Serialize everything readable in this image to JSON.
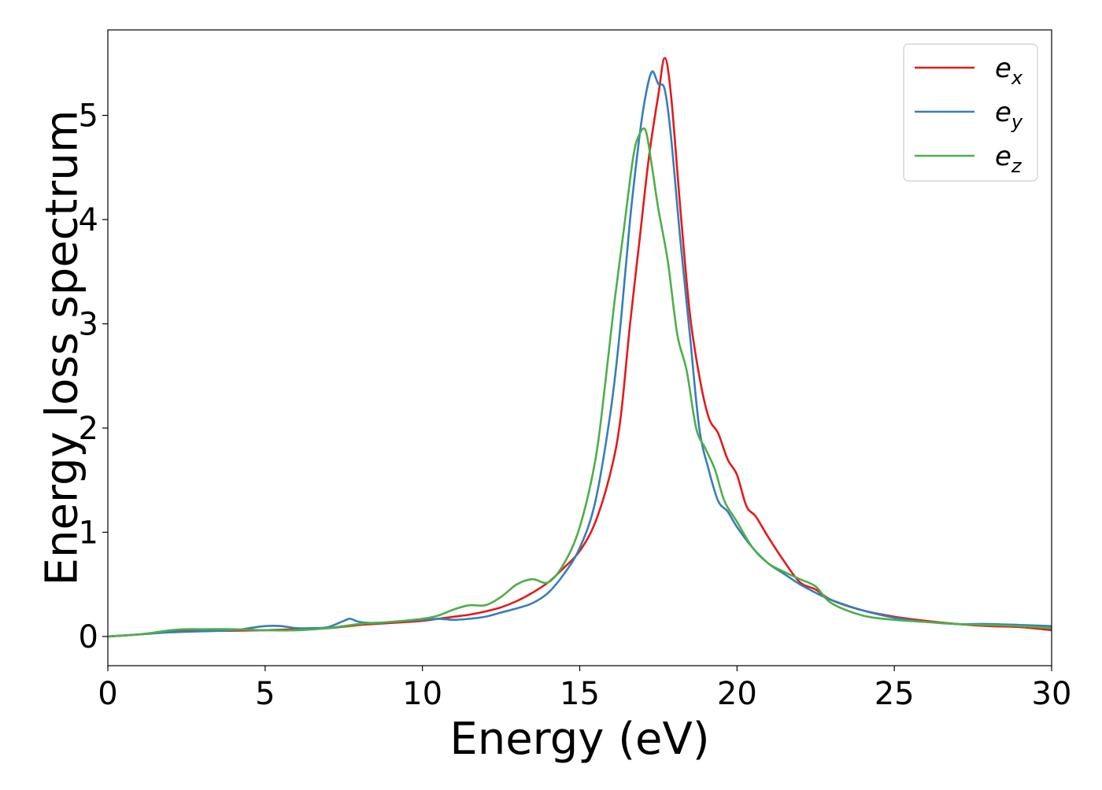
{
  "chart_data": {
    "type": "line",
    "title": "",
    "xlabel": "Energy (eV)",
    "ylabel": "Energy loss spectrum",
    "xlim": [
      0,
      30
    ],
    "ylim": [
      -0.28,
      5.82
    ],
    "xticks": [
      0,
      5,
      10,
      15,
      20,
      25,
      30
    ],
    "yticks": [
      0,
      1,
      2,
      3,
      4,
      5
    ],
    "grid": false,
    "legend_position": "top-right",
    "series": [
      {
        "name": "e_x",
        "color": "#e41a1c",
        "x": [
          0,
          1,
          2,
          3,
          4,
          5,
          6,
          7,
          8,
          9,
          10,
          10.5,
          11,
          11.5,
          12,
          12.5,
          13,
          13.5,
          14,
          14.5,
          15,
          15.5,
          16,
          16.3,
          16.6,
          16.9,
          17.2,
          17.5,
          17.7,
          17.9,
          18.2,
          18.5,
          18.8,
          19.1,
          19.4,
          19.7,
          20,
          20.3,
          20.6,
          21,
          21.5,
          22,
          22.5,
          23,
          24,
          25,
          26,
          27,
          28,
          29,
          30
        ],
        "values": [
          0,
          0.02,
          0.045,
          0.055,
          0.055,
          0.06,
          0.07,
          0.08,
          0.11,
          0.13,
          0.15,
          0.17,
          0.19,
          0.21,
          0.24,
          0.28,
          0.34,
          0.42,
          0.52,
          0.66,
          0.82,
          1.1,
          1.6,
          2.1,
          3.0,
          3.8,
          4.6,
          5.2,
          5.55,
          5.2,
          4.1,
          3.1,
          2.5,
          2.1,
          1.95,
          1.7,
          1.55,
          1.25,
          1.15,
          0.95,
          0.72,
          0.52,
          0.45,
          0.35,
          0.25,
          0.19,
          0.15,
          0.12,
          0.1,
          0.09,
          0.06
        ]
      },
      {
        "name": "e_y",
        "color": "#377eb8",
        "x": [
          0,
          1,
          2,
          3,
          4,
          4.5,
          5,
          5.5,
          6,
          6.5,
          7,
          7.5,
          7.7,
          8,
          8.5,
          9,
          9.5,
          10,
          10.5,
          11,
          11.5,
          12,
          12.5,
          13,
          13.5,
          14,
          14.5,
          15,
          15.5,
          16,
          16.3,
          16.6,
          16.9,
          17.1,
          17.3,
          17.5,
          17.7,
          17.9,
          18.2,
          18.5,
          18.8,
          19.1,
          19.4,
          19.7,
          20,
          20.5,
          21,
          21.5,
          22,
          22.5,
          23,
          24,
          25,
          26,
          27,
          28,
          29,
          30
        ],
        "values": [
          0,
          0.02,
          0.04,
          0.05,
          0.06,
          0.08,
          0.1,
          0.1,
          0.08,
          0.08,
          0.09,
          0.15,
          0.17,
          0.14,
          0.13,
          0.14,
          0.15,
          0.16,
          0.17,
          0.16,
          0.17,
          0.19,
          0.23,
          0.27,
          0.32,
          0.42,
          0.6,
          0.85,
          1.3,
          2.2,
          3.0,
          4.0,
          4.8,
          5.2,
          5.42,
          5.3,
          5.25,
          4.8,
          3.8,
          2.9,
          2.0,
          1.6,
          1.3,
          1.2,
          1.05,
          0.85,
          0.7,
          0.6,
          0.5,
          0.42,
          0.35,
          0.25,
          0.18,
          0.14,
          0.12,
          0.12,
          0.11,
          0.1
        ]
      },
      {
        "name": "e_z",
        "color": "#4daf4a",
        "x": [
          0,
          1,
          2,
          2.5,
          3,
          4,
          5,
          6,
          7,
          8,
          9,
          10,
          10.5,
          11,
          11.5,
          12,
          12.5,
          13,
          13.5,
          14,
          14.5,
          15,
          15.5,
          15.8,
          16.1,
          16.4,
          16.7,
          16.9,
          17.1,
          17.3,
          17.5,
          17.8,
          18.1,
          18.4,
          18.7,
          19,
          19.3,
          19.6,
          20,
          20.5,
          21,
          21.5,
          22,
          22.5,
          23,
          24,
          25,
          26,
          27,
          28,
          29,
          30
        ],
        "values": [
          0,
          0.02,
          0.06,
          0.07,
          0.07,
          0.07,
          0.06,
          0.06,
          0.08,
          0.12,
          0.14,
          0.17,
          0.2,
          0.26,
          0.3,
          0.3,
          0.38,
          0.5,
          0.55,
          0.52,
          0.7,
          1.05,
          1.7,
          2.4,
          3.2,
          3.9,
          4.6,
          4.82,
          4.85,
          4.5,
          4.1,
          3.6,
          2.9,
          2.55,
          2.0,
          1.8,
          1.6,
          1.3,
          1.1,
          0.85,
          0.7,
          0.62,
          0.55,
          0.48,
          0.32,
          0.2,
          0.16,
          0.14,
          0.12,
          0.11,
          0.1,
          0.08
        ]
      }
    ]
  },
  "legend": {
    "items": [
      {
        "base": "e",
        "sub": "x"
      },
      {
        "base": "e",
        "sub": "y"
      },
      {
        "base": "e",
        "sub": "z"
      }
    ]
  }
}
